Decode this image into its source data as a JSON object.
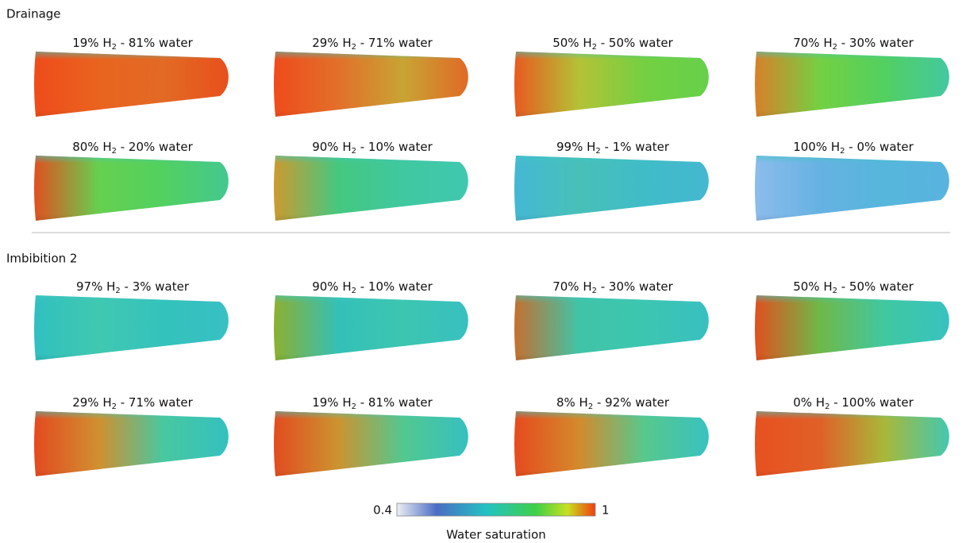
{
  "sections": [
    {
      "title": "Drainage",
      "panels": [
        {
          "label": {
            "pre": "19% H",
            "sub": "2",
            "post": " - 81% water"
          }
        },
        {
          "label": {
            "pre": "29% H",
            "sub": "2",
            "post": " - 71% water"
          }
        },
        {
          "label": {
            "pre": "50% H",
            "sub": "2",
            "post": " - 50% water"
          }
        },
        {
          "label": {
            "pre": "70% H",
            "sub": "2",
            "post": " - 30% water"
          }
        },
        {
          "label": {
            "pre": "80% H",
            "sub": "2",
            "post": " - 20% water"
          }
        },
        {
          "label": {
            "pre": "90% H",
            "sub": "2",
            "post": " - 10% water"
          }
        },
        {
          "label": {
            "pre": "99% H",
            "sub": "2",
            "post": " - 1% water"
          }
        },
        {
          "label": {
            "pre": "100% H",
            "sub": "2",
            "post": " - 0% water"
          }
        }
      ]
    },
    {
      "title": "Imbibition 2",
      "panels": [
        {
          "label": {
            "pre": "97% H",
            "sub": "2",
            "post": " - 3% water"
          }
        },
        {
          "label": {
            "pre": "90% H",
            "sub": "2",
            "post": " - 10% water"
          }
        },
        {
          "label": {
            "pre": "70% H",
            "sub": "2",
            "post": " - 30% water"
          }
        },
        {
          "label": {
            "pre": "50% H",
            "sub": "2",
            "post": " - 50% water"
          }
        },
        {
          "label": {
            "pre": "29% H",
            "sub": "2",
            "post": " - 71% water"
          }
        },
        {
          "label": {
            "pre": "19% H",
            "sub": "2",
            "post": " - 81% water"
          }
        },
        {
          "label": {
            "pre": "8% H",
            "sub": "2",
            "post": " - 92% water"
          }
        },
        {
          "label": {
            "pre": "0% H",
            "sub": "2",
            "post": " - 100% water"
          }
        }
      ]
    }
  ],
  "colorbar": {
    "min": 0.4,
    "max": 1,
    "label": "Water saturation"
  }
}
